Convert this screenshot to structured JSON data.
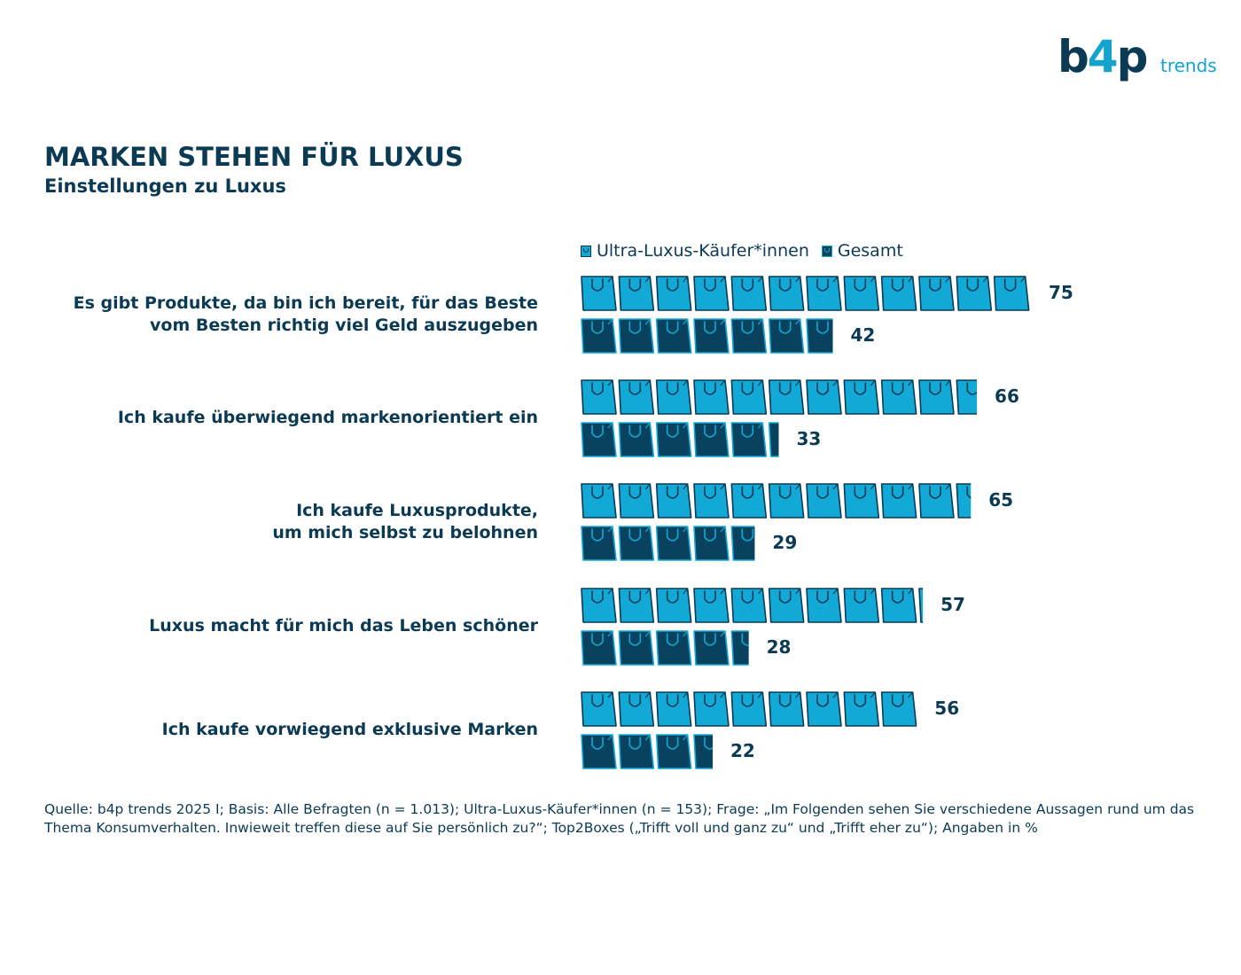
{
  "logo": {
    "brand_b": "b",
    "brand_4": "4",
    "brand_p": "p",
    "sub": "trends"
  },
  "chart_data": {
    "type": "bar",
    "orientation": "horizontal",
    "title": "MARKEN STEHEN FÜR LUXUS",
    "subtitle": "Einstellungen zu Luxus",
    "categories": [
      "Es gibt Produkte, da bin ich bereit, für das Beste\nvom Besten richtig viel Geld auszugeben",
      "Ich kaufe überwiegend markenorientiert ein",
      "Ich kaufe Luxusprodukte,\num mich selbst zu belohnen",
      "Luxus macht für mich das Leben schöner",
      "Ich kaufe vorwiegend exklusive Marken"
    ],
    "series": [
      {
        "name": "Ultra-Luxus-Käufer*innen",
        "color": "#12a9d6",
        "values": [
          75,
          66,
          65,
          57,
          56
        ]
      },
      {
        "name": "Gesamt",
        "color": "#08425f",
        "values": [
          42,
          33,
          29,
          28,
          22
        ]
      }
    ],
    "unit_icon": "shopping-bag-icon",
    "legend_position": "top",
    "value_labels": true
  },
  "footnote": "Quelle: b4p trends 2025 I; Basis: Alle Befragten (n = 1.013); Ultra-Luxus-Käufer*innen (n = 153); Frage: „Im Folgenden sehen Sie verschiedene Aussagen rund um das Thema Konsumverhalten. Inwieweit treffen diese auf Sie persönlich zu?“; Top2Boxes („Trifft voll und ganz zu“ und „Trifft eher zu“); Angaben in %"
}
